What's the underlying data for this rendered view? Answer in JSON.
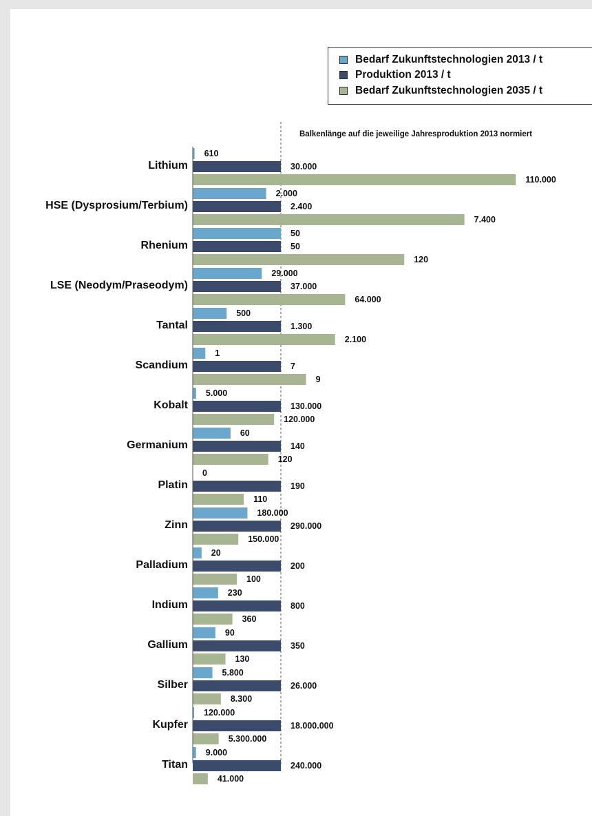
{
  "chart_data": {
    "type": "bar",
    "orientation": "horizontal",
    "note": "Balkenlänge auf die jeweilige Jahresproduktion 2013 normiert",
    "legend_position": "top-right",
    "series": [
      {
        "name": "Bedarf Zukunftstechnologien 2013  /  t",
        "color": "#6aa7cc",
        "values": [
          610,
          2000,
          50,
          29000,
          500,
          1,
          5000,
          60,
          0,
          180000,
          20,
          230,
          90,
          5800,
          120000,
          9000
        ],
        "labels": [
          "610",
          "2.000",
          "50",
          "29.000",
          "500",
          "1",
          "5.000",
          "60",
          "0",
          "180.000",
          "20",
          "230",
          "90",
          "5.800",
          "120.000",
          "9.000"
        ]
      },
      {
        "name": "Produktion 2013  /  t",
        "color": "#3c4a6b",
        "values": [
          30000,
          2400,
          50,
          37000,
          1300,
          7,
          130000,
          140,
          190,
          290000,
          200,
          800,
          350,
          26000,
          18000000,
          240000
        ],
        "labels": [
          "30.000",
          "2.400",
          "50",
          "37.000",
          "1.300",
          "7",
          "130.000",
          "140",
          "190",
          "290.000",
          "200",
          "800",
          "350",
          "26.000",
          "18.000.000",
          "240.000"
        ]
      },
      {
        "name": "Bedarf Zukunftstechnologien 2035  /  t",
        "color": "#a7b593",
        "values": [
          110000,
          7400,
          120,
          64000,
          2100,
          9,
          120000,
          120,
          110,
          150000,
          100,
          360,
          130,
          8300,
          5300000,
          41000
        ],
        "labels": [
          "110.000",
          "7.400",
          "120",
          "64.000",
          "2.100",
          "9",
          "120.000",
          "120",
          "110",
          "150.000",
          "100",
          "360",
          "130",
          "8.300",
          "5.300.000",
          "41.000"
        ]
      }
    ],
    "categories": [
      "Lithium",
      "HSE (Dysprosium/Terbium)",
      "Rhenium",
      "LSE (Neodym/Praseodym)",
      "Tantal",
      "Scandium",
      "Kobalt",
      "Germanium",
      "Platin",
      "Zinn",
      "Palladium",
      "Indium",
      "Gallium",
      "Silber",
      "Kupfer",
      "Titan"
    ],
    "normalized_to_series": 1
  }
}
